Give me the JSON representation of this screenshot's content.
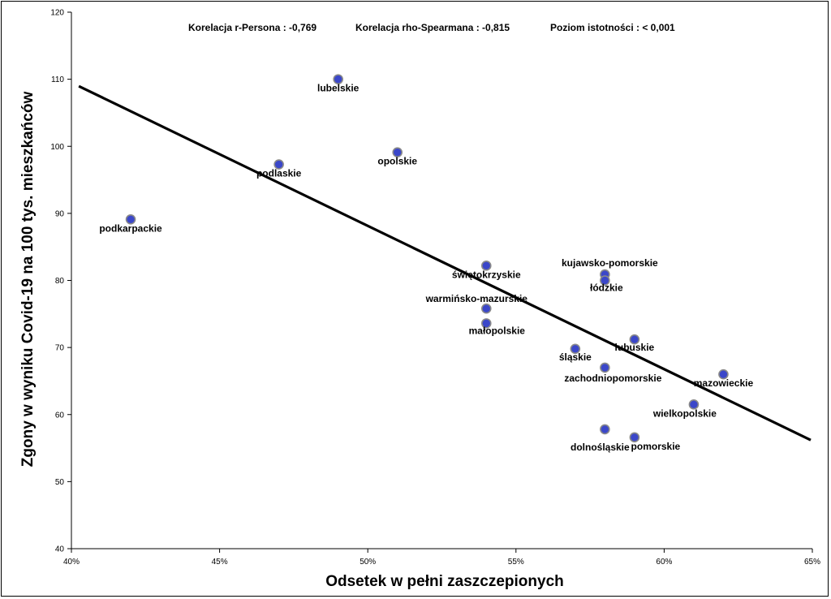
{
  "chart_data": {
    "type": "scatter",
    "title": "",
    "xlabel": "Odsetek w pełni zaszczepionych",
    "ylabel": "Zgony w wyniku Covid-19 na 100 tys. mieszkańców",
    "xlim": [
      0.4,
      0.65
    ],
    "ylim": [
      40,
      120
    ],
    "x_ticks": [
      0.4,
      0.45,
      0.5,
      0.55,
      0.6,
      0.65
    ],
    "x_tick_labels": [
      "40%",
      "45%",
      "50%",
      "55%",
      "60%",
      "65%"
    ],
    "y_ticks": [
      40,
      50,
      60,
      70,
      80,
      90,
      100,
      110,
      120
    ],
    "y_tick_labels": [
      "40",
      "50",
      "60",
      "70",
      "80",
      "90",
      "100",
      "110",
      "120"
    ],
    "grid": false,
    "stats": [
      "Korelacja r-Persona : -0,769",
      "Korelacja rho-Spearmana : -0,815",
      "Poziom istotności : < 0,001"
    ],
    "points": [
      {
        "label": "lubelskie",
        "x": 0.49,
        "y": 110.0
      },
      {
        "label": "opolskie",
        "x": 0.51,
        "y": 99.1
      },
      {
        "label": "podlaskie",
        "x": 0.47,
        "y": 97.3
      },
      {
        "label": "podkarpackie",
        "x": 0.42,
        "y": 89.1
      },
      {
        "label": "świętokrzyskie",
        "x": 0.54,
        "y": 82.2
      },
      {
        "label": "kujawsko-pomorskie",
        "x": 0.58,
        "y": 80.9
      },
      {
        "label": "łódzkie",
        "x": 0.58,
        "y": 80.0
      },
      {
        "label": "warmińsko-mazurskie",
        "x": 0.54,
        "y": 75.8
      },
      {
        "label": "małopolskie",
        "x": 0.54,
        "y": 73.6
      },
      {
        "label": "lubuskie",
        "x": 0.59,
        "y": 71.2
      },
      {
        "label": "śląskie",
        "x": 0.57,
        "y": 69.8
      },
      {
        "label": "zachodniopomorskie",
        "x": 0.58,
        "y": 67.0
      },
      {
        "label": "mazowieckie",
        "x": 0.62,
        "y": 66.0
      },
      {
        "label": "wielkopolskie",
        "x": 0.61,
        "y": 61.5
      },
      {
        "label": "dolnośląskie",
        "x": 0.58,
        "y": 57.8
      },
      {
        "label": "pomorskie",
        "x": 0.59,
        "y": 56.6
      }
    ],
    "trendline": {
      "x": [
        0.4,
        0.65
      ],
      "y": [
        109.5,
        56.2
      ]
    },
    "colors": {
      "marker_fill": "#3b47c9",
      "marker_stroke": "#8a8a8a",
      "trendline": "#000000"
    }
  }
}
